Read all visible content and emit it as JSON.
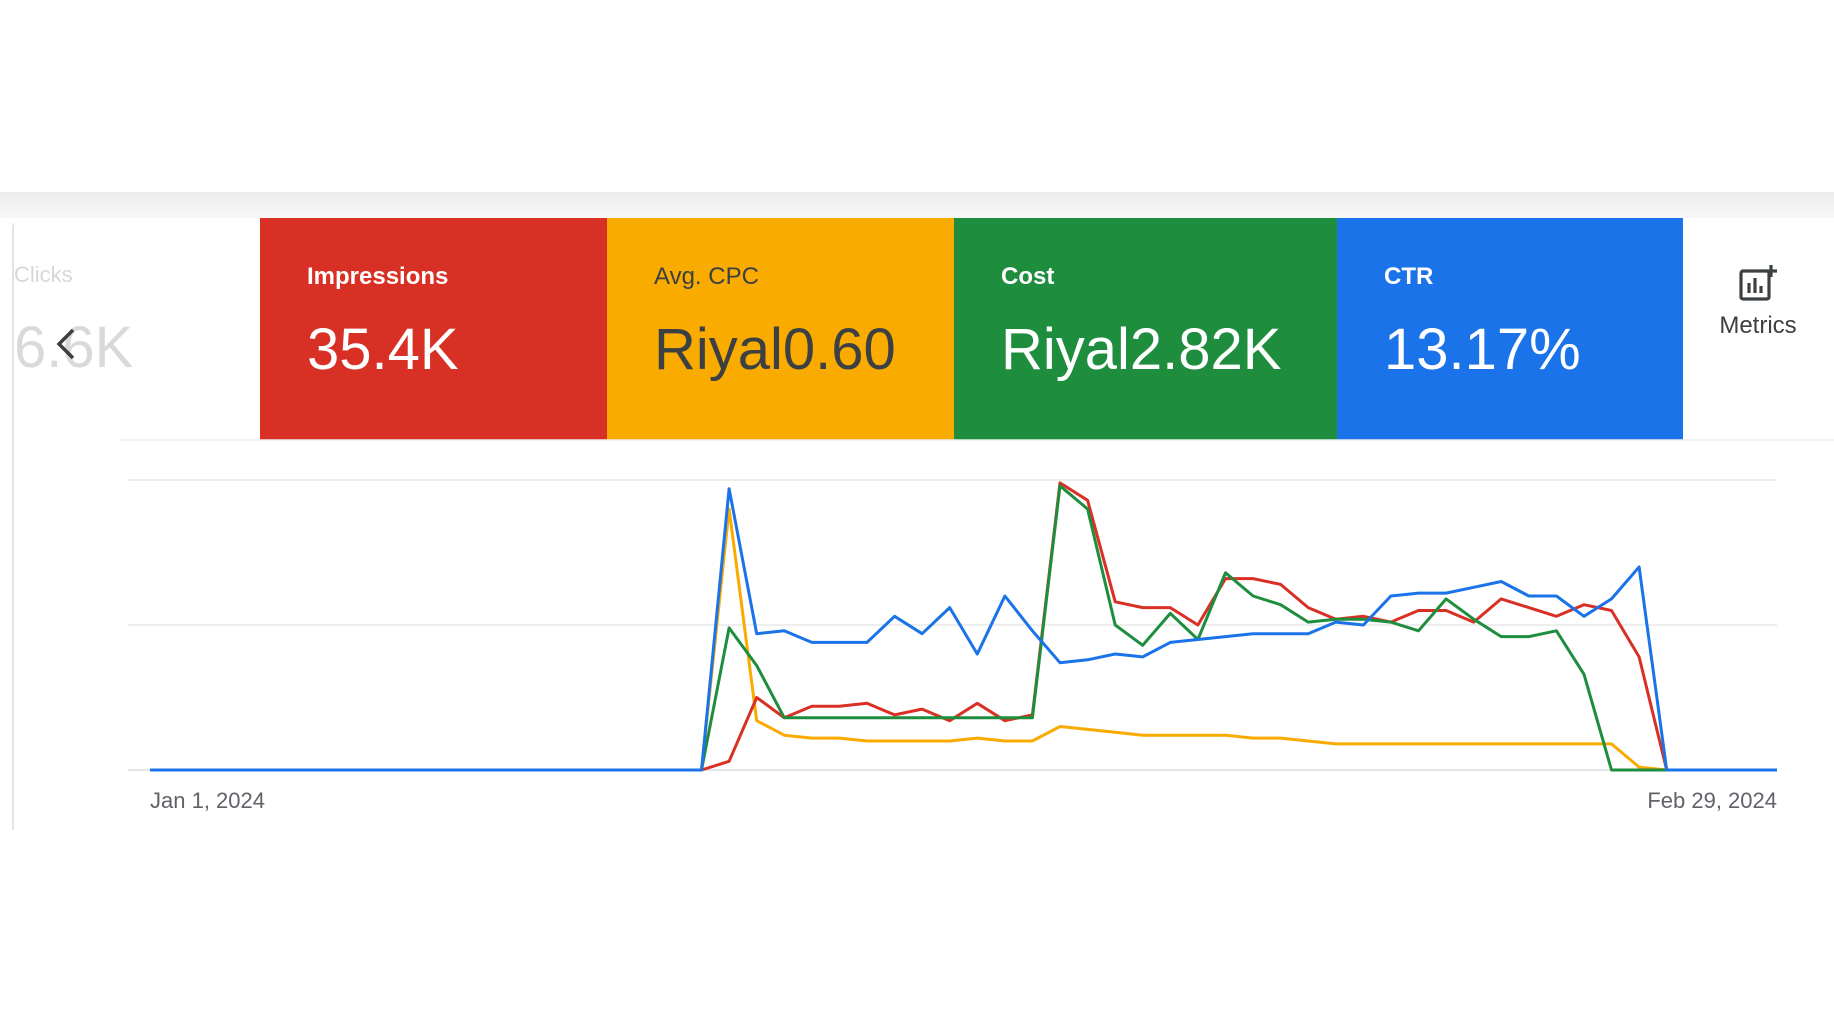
{
  "hidden_tile": {
    "label": "Clicks",
    "value": "6.6K"
  },
  "scorecards": [
    {
      "label": "Impressions",
      "value": "35.4K",
      "color": "#d93025"
    },
    {
      "label": "Avg. CPC",
      "value": "Riyal0.60",
      "color": "#f9ab00"
    },
    {
      "label": "Cost",
      "value": "Riyal2.82K",
      "color": "#1e8e3e"
    },
    {
      "label": "CTR",
      "value": "13.17%",
      "color": "#1a73e8"
    }
  ],
  "metrics_button": {
    "label": "Metrics",
    "icon": "add-chart-icon"
  },
  "scroll_button": {
    "icon": "chevron-left-icon"
  },
  "chart_data": {
    "type": "line",
    "x_start_label": "Jan 1, 2024",
    "x_end_label": "Feb 29, 2024",
    "gridlines": 3,
    "ylim": [
      0,
      100
    ],
    "series": [
      {
        "metric": "Impressions",
        "color": "#d93025",
        "values": [
          0,
          0,
          0,
          0,
          0,
          0,
          0,
          0,
          0,
          0,
          0,
          0,
          0,
          0,
          0,
          0,
          0,
          0,
          0,
          0,
          0,
          3,
          25,
          18,
          22,
          22,
          23,
          19,
          21,
          17,
          23,
          17,
          19,
          99,
          93,
          58,
          56,
          56,
          50,
          66,
          66,
          64,
          56,
          52,
          53,
          51,
          55,
          55,
          51,
          59,
          56,
          53,
          57,
          55,
          39,
          0,
          0,
          0,
          0,
          0
        ]
      },
      {
        "metric": "Avg. CPC",
        "color": "#f9ab00",
        "values": [
          0,
          0,
          0,
          0,
          0,
          0,
          0,
          0,
          0,
          0,
          0,
          0,
          0,
          0,
          0,
          0,
          0,
          0,
          0,
          0,
          0,
          90,
          17,
          12,
          11,
          11,
          10,
          10,
          10,
          10,
          11,
          10,
          10,
          15,
          14,
          13,
          12,
          12,
          12,
          12,
          11,
          11,
          10,
          9,
          9,
          9,
          9,
          9,
          9,
          9,
          9,
          9,
          9,
          9,
          1,
          0,
          0,
          0,
          0,
          0
        ]
      },
      {
        "metric": "Cost",
        "color": "#1e8e3e",
        "values": [
          0,
          0,
          0,
          0,
          0,
          0,
          0,
          0,
          0,
          0,
          0,
          0,
          0,
          0,
          0,
          0,
          0,
          0,
          0,
          0,
          0,
          49,
          36,
          18,
          18,
          18,
          18,
          18,
          18,
          18,
          18,
          18,
          18,
          98,
          90,
          50,
          43,
          54,
          45,
          68,
          60,
          57,
          51,
          52,
          52,
          51,
          48,
          59,
          52,
          46,
          46,
          48,
          33,
          0,
          0,
          0,
          0,
          0,
          0,
          0
        ]
      },
      {
        "metric": "CTR",
        "color": "#1a73e8",
        "values": [
          0,
          0,
          0,
          0,
          0,
          0,
          0,
          0,
          0,
          0,
          0,
          0,
          0,
          0,
          0,
          0,
          0,
          0,
          0,
          0,
          0,
          97,
          47,
          48,
          44,
          44,
          44,
          53,
          47,
          56,
          40,
          60,
          48,
          37,
          38,
          40,
          39,
          44,
          45,
          46,
          47,
          47,
          47,
          51,
          50,
          60,
          61,
          61,
          63,
          65,
          60,
          60,
          53,
          59,
          70,
          0,
          0,
          0,
          0,
          0
        ]
      }
    ]
  }
}
